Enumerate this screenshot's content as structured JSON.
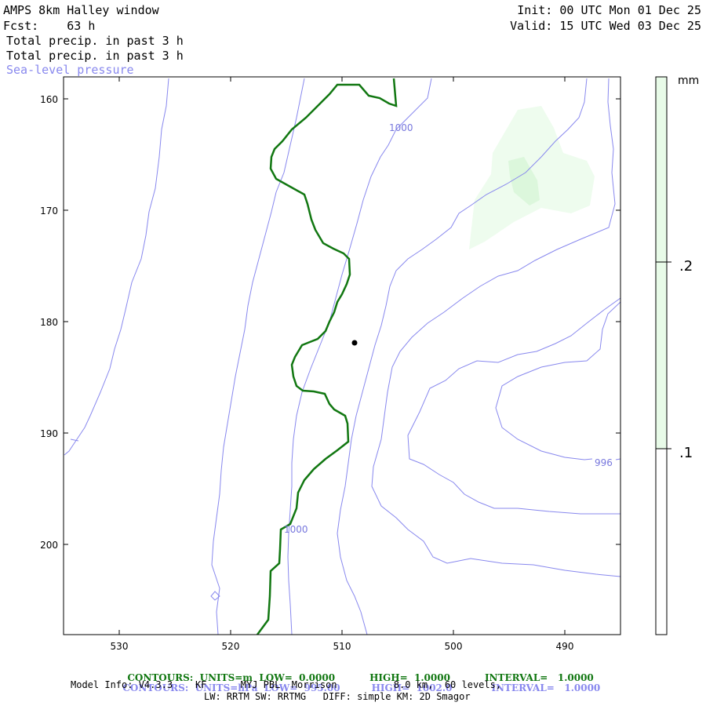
{
  "header": {
    "title": "AMPS 8km Halley window",
    "forecast": "Fcst:    63 h",
    "init": "Init: 00 UTC Mon 01 Dec 25",
    "valid": "Valid: 15 UTC Wed 03 Dec 25",
    "field1": "Total precip. in past 3 h",
    "field2": "Total precip. in past 3 h",
    "field3": "Sea-level pressure"
  },
  "colorbar": {
    "unit": "mm",
    "labels": [
      ".2",
      ".1"
    ],
    "fill_color": "#e8fbe8"
  },
  "chart_data": {
    "type": "contour-map",
    "x_ticks": [
      "530",
      "520",
      "510",
      "500",
      "490"
    ],
    "y_ticks": [
      "160",
      "170",
      "180",
      "190",
      "200"
    ],
    "contour_labels": [
      "1000",
      "996",
      "1000"
    ],
    "colors": {
      "pressure": "#8888ee",
      "precip_contour": "#117711",
      "precip_fill_light": "#eefcee",
      "precip_fill_dark": "#dcf7dc"
    }
  },
  "footer": {
    "line1": {
      "label": "CONTOURS:  UNITS=m  LOW=  0.0000",
      "high": "HIGH=  1.0000",
      "interval": "INTERVAL=   1.0000"
    },
    "line2": {
      "label": "CONTOURS:  UNITS=hPa  LOW=  995.00",
      "high": "HIGH=  1002.0",
      "interval": "INTERVAL=   1.0000"
    },
    "model_info": "Model Info: V4.3.3    KF      MYJ PBL  Morrison          8.0 km,  60 levels,",
    "physics": "LW: RRTM SW: RRTMG   DIFF: simple KM: 2D Smagor"
  }
}
